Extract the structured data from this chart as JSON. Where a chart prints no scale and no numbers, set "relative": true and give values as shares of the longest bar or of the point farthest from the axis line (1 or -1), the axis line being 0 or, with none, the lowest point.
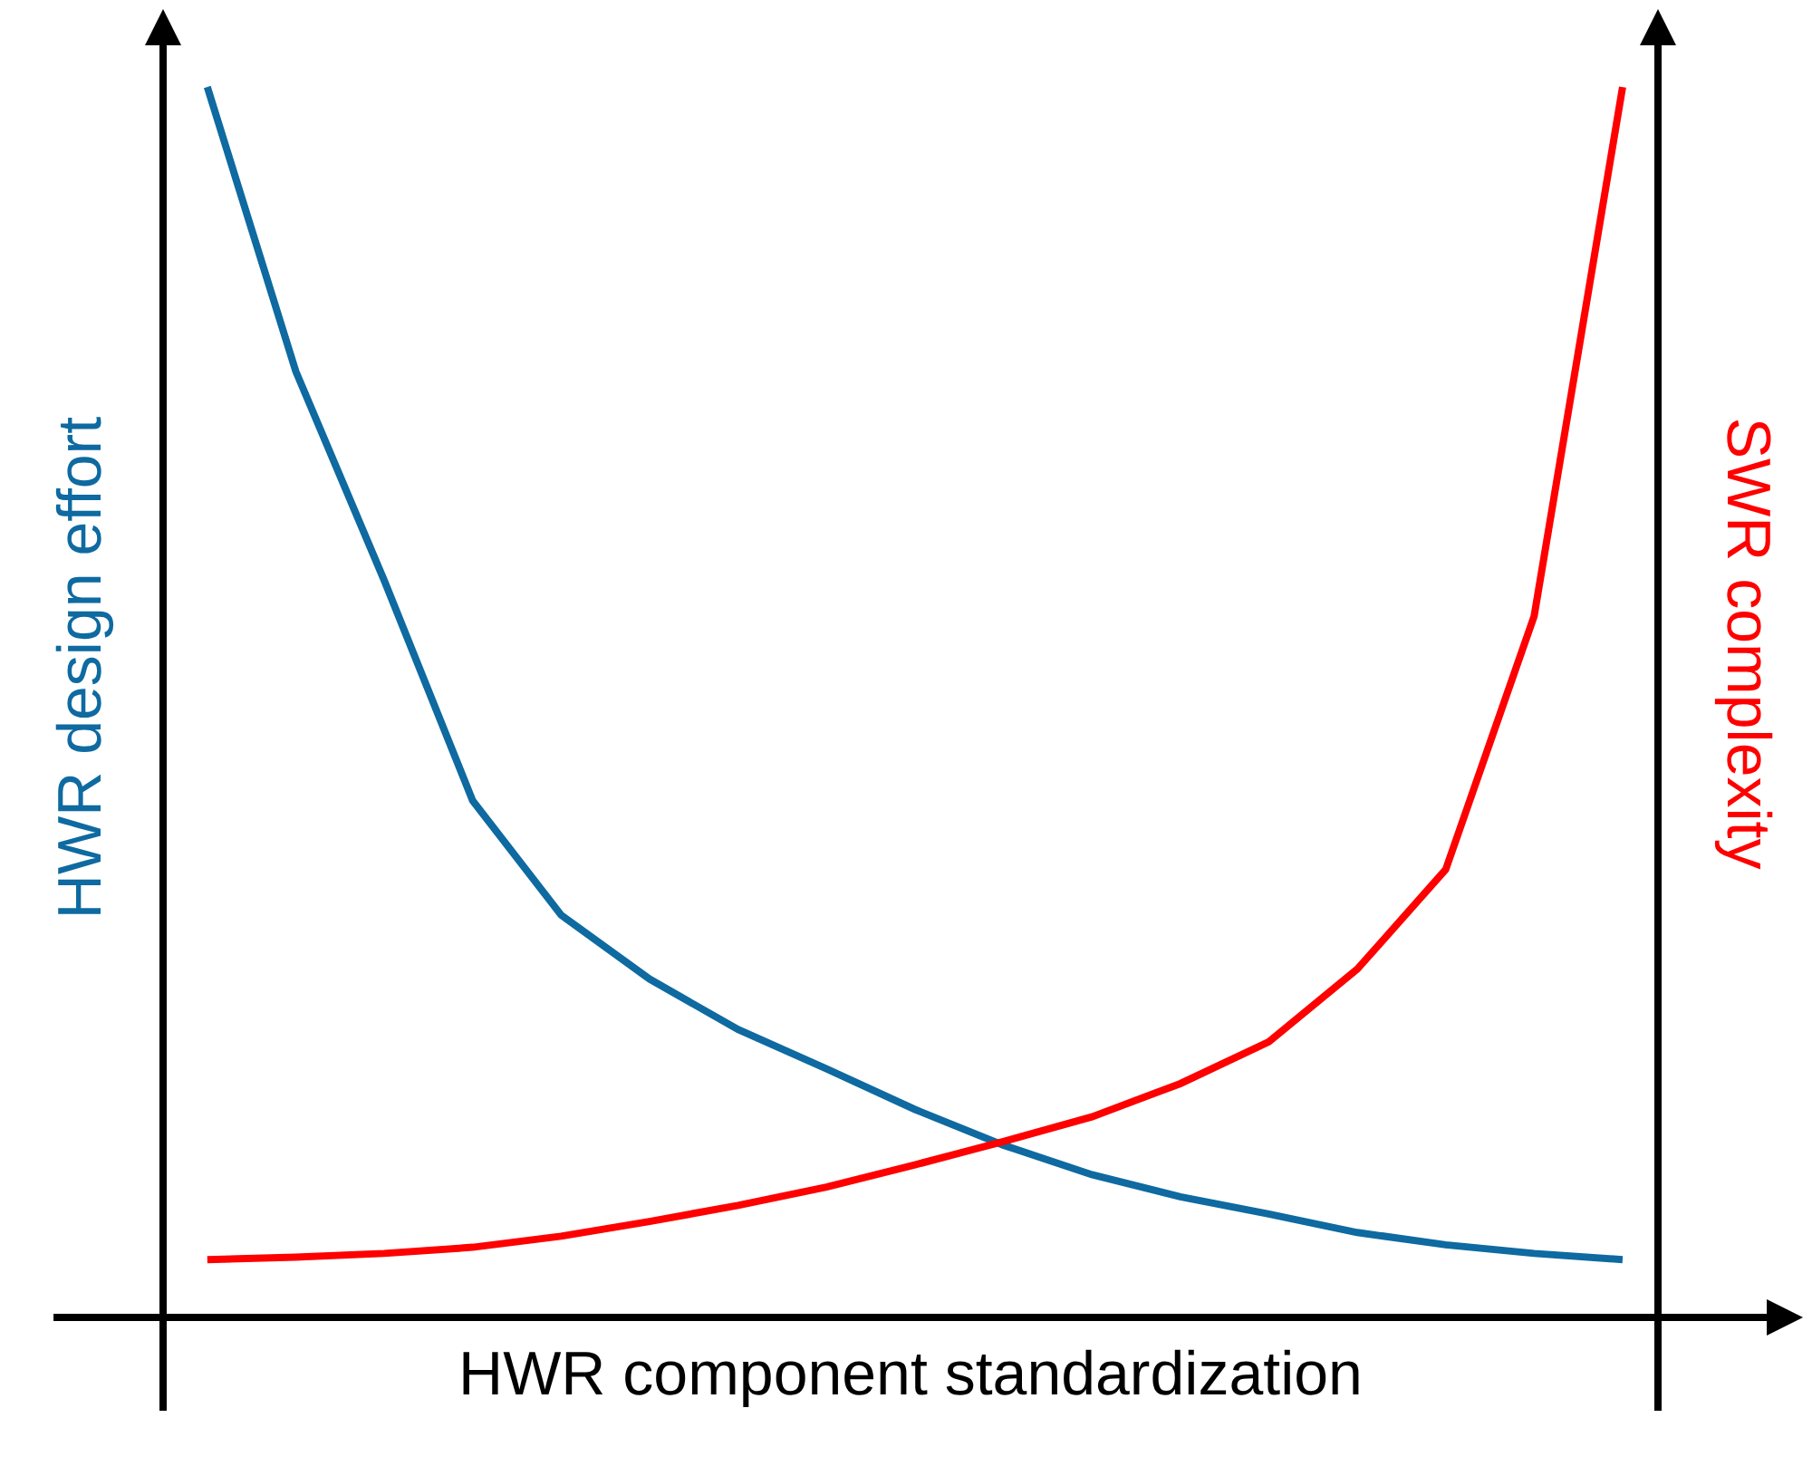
{
  "chart_data": {
    "type": "line",
    "relative": true,
    "marker": "none",
    "xlabel": "HWR component standardization",
    "ylabel": "HWR design effort",
    "y2label": "SWR complexity",
    "categories": [
      null,
      null,
      null,
      null,
      null,
      null,
      null,
      null,
      null,
      null,
      null,
      null,
      null,
      null,
      null,
      null,
      null
    ],
    "series": [
      {
        "color": "#0e6aa0",
        "values": [
          1.0,
          0.769,
          0.599,
          0.42,
          0.327,
          0.275,
          0.234,
          0.202,
          0.169,
          0.14,
          0.116,
          0.098,
          0.084,
          0.069,
          0.059,
          0.052,
          0.047
        ]
      },
      {
        "color": "#ff0000",
        "values": [
          0.047,
          0.049,
          0.052,
          0.057,
          0.066,
          0.078,
          0.091,
          0.106,
          0.124,
          0.143,
          0.163,
          0.19,
          0.224,
          0.283,
          0.364,
          0.57,
          1.0
        ]
      }
    ]
  }
}
